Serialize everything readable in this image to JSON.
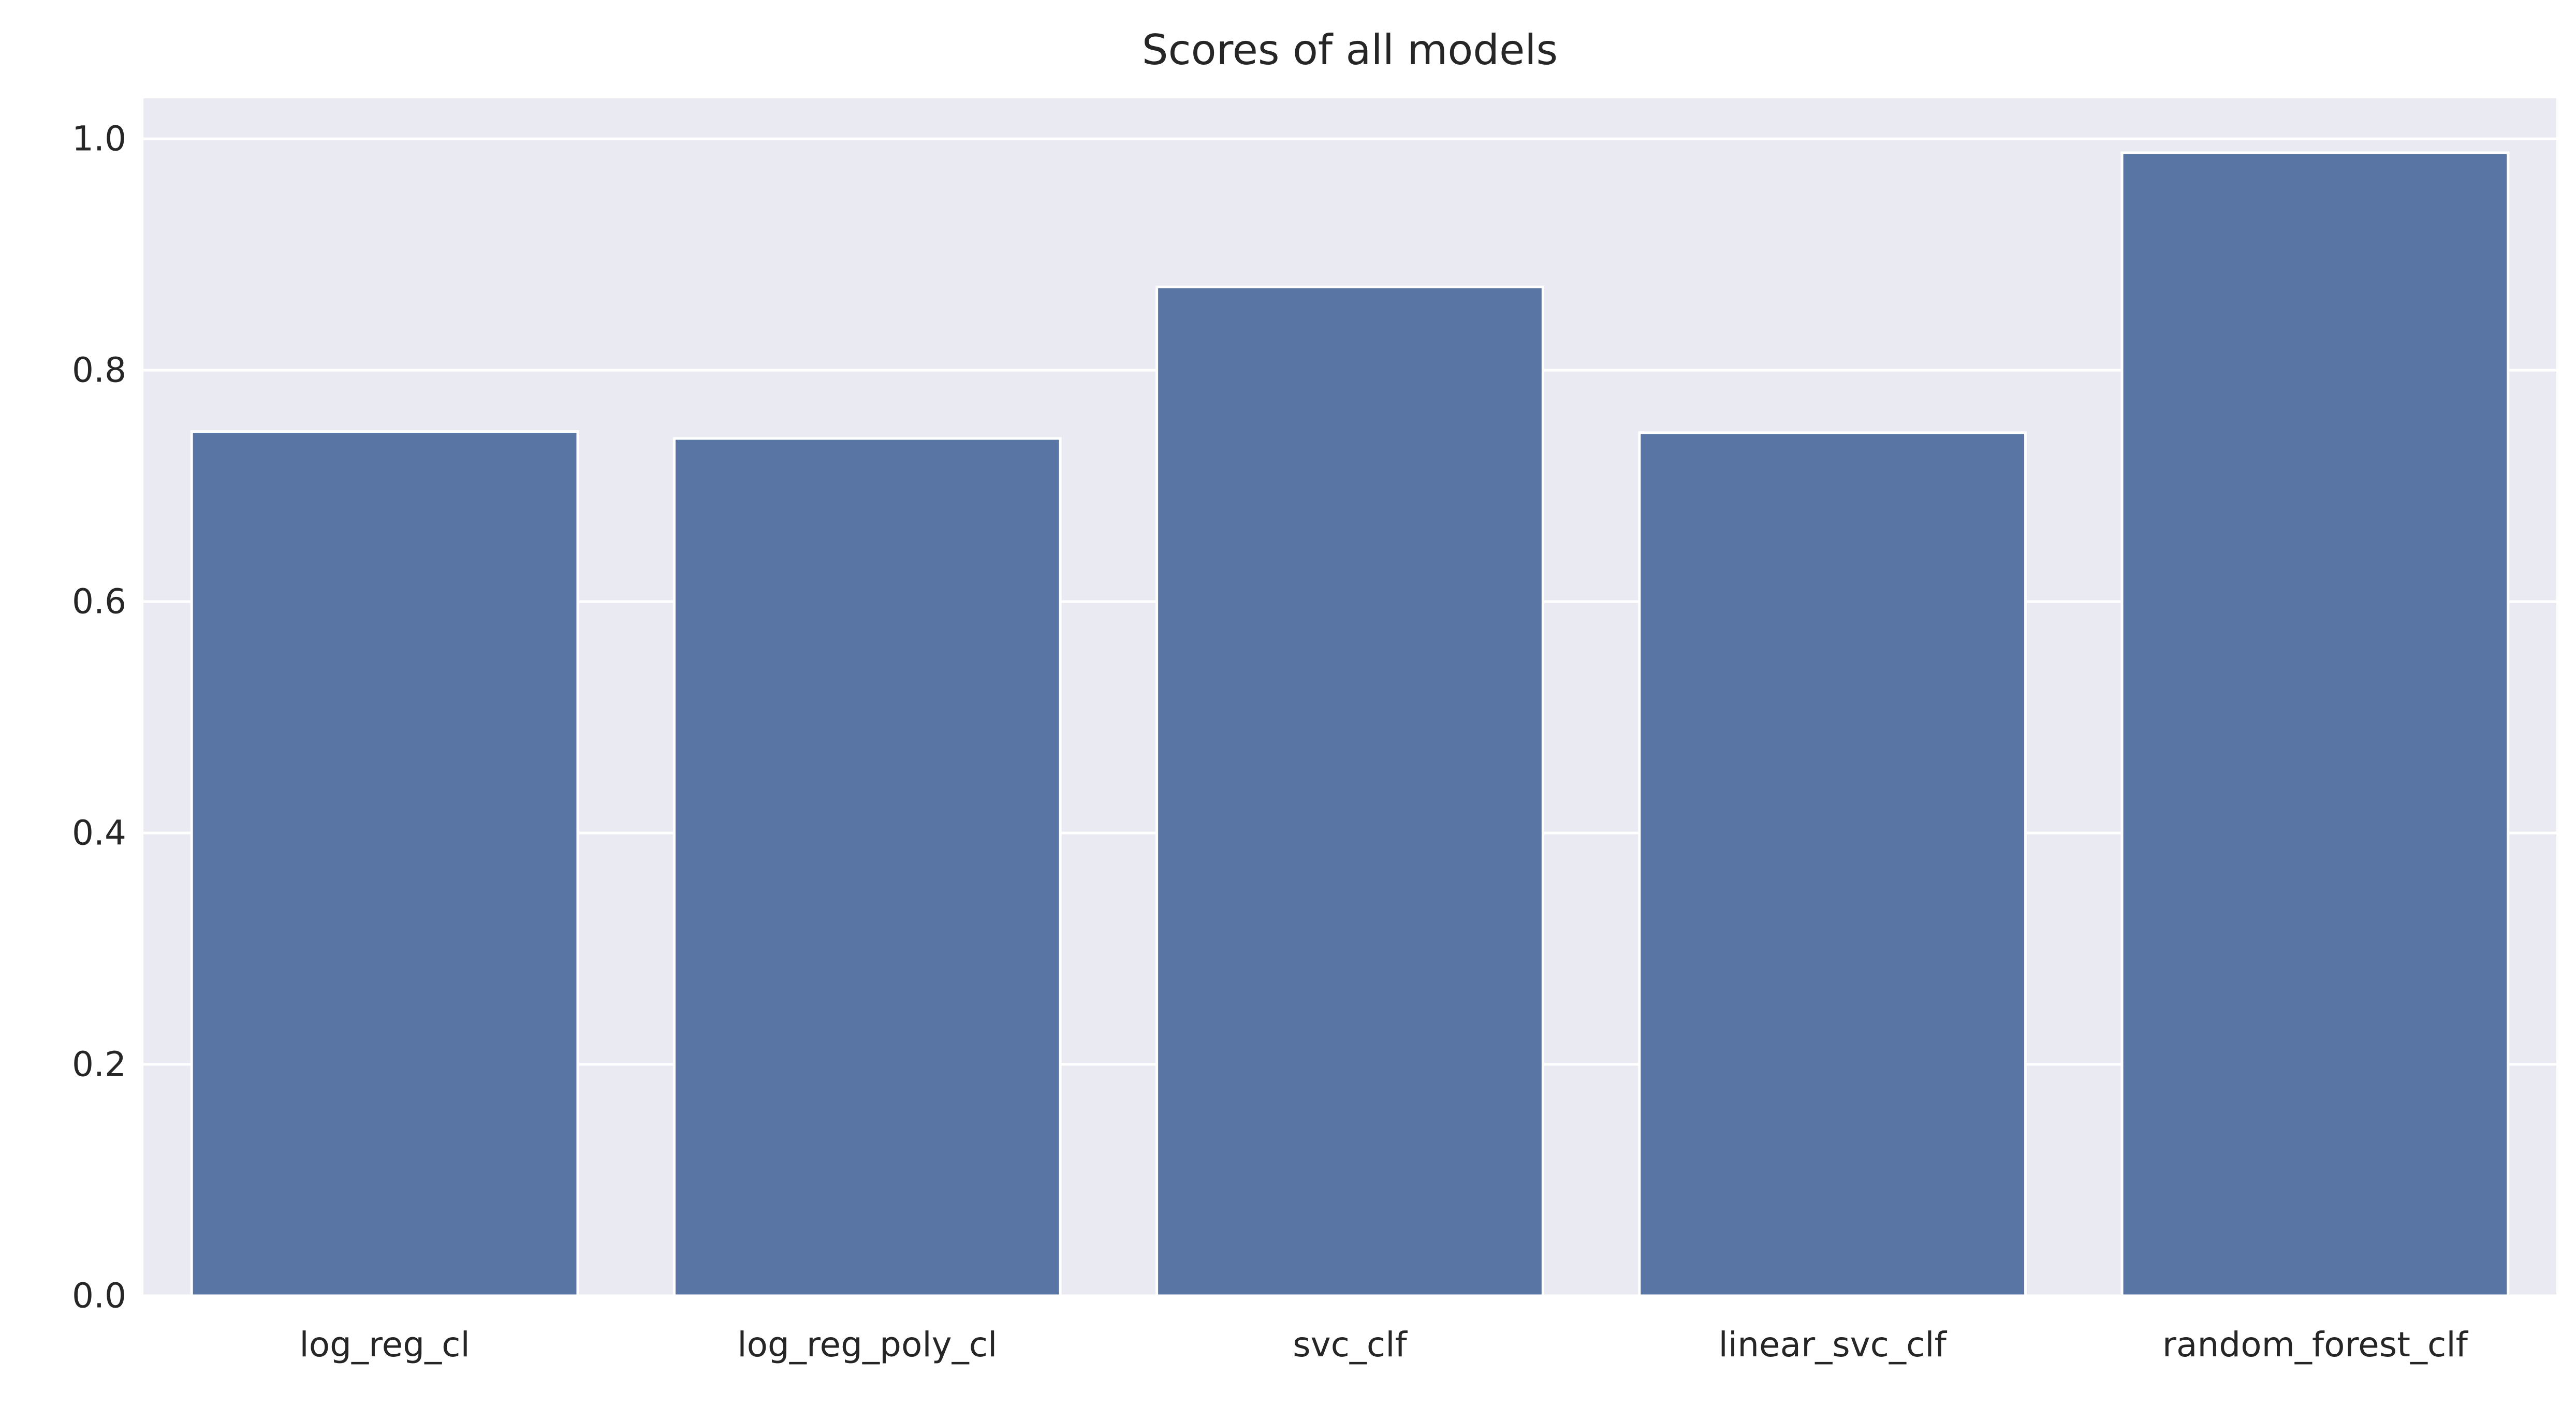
{
  "chart_data": {
    "type": "bar",
    "title": "Scores of all models",
    "xlabel": "",
    "ylabel": "",
    "categories": [
      "log_reg_cl",
      "log_reg_poly_cl",
      "svc_clf",
      "linear_svc_clf",
      "random_forest_clf"
    ],
    "values": [
      0.747,
      0.741,
      0.872,
      0.746,
      0.988
    ],
    "ylim": [
      0.0,
      1.035
    ],
    "yticks": [
      0.0,
      0.2,
      0.4,
      0.6,
      0.8,
      1.0
    ],
    "ytick_labels": [
      "0.0",
      "0.2",
      "0.4",
      "0.6",
      "0.8",
      "1.0"
    ],
    "grid": true,
    "legend": "none",
    "colors": {
      "bar": "#5975a4",
      "bar_edge": "#ffffff",
      "plot_background": "#eaeaf2",
      "grid": "#ffffff",
      "text": "#262626"
    }
  }
}
